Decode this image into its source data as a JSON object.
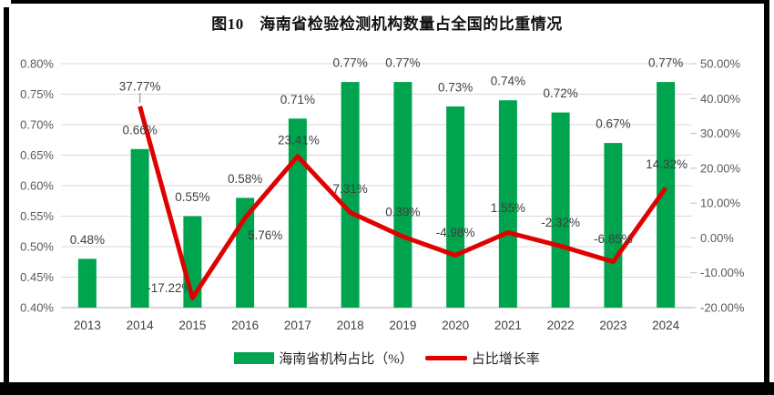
{
  "title": "图10　海南省检验检测机构数量占全国的比重情况",
  "colors": {
    "bar": "#00A44F",
    "line": "#E10000",
    "grid": "#D9D9D9",
    "axis_line": "#BFBFBF",
    "tick_text": "#595959",
    "category_text": "#404040",
    "label_text": "#3F3F3F",
    "leader_line": "#A6A6A6"
  },
  "chart_data": {
    "type": "bar+line",
    "title": "图10　海南省检验检测机构数量占全国的比重情况",
    "categories": [
      "2013",
      "2014",
      "2015",
      "2016",
      "2017",
      "2018",
      "2019",
      "2020",
      "2021",
      "2022",
      "2023",
      "2024"
    ],
    "series": [
      {
        "name": "海南省机构占比（%）",
        "type": "bar",
        "axis": "left",
        "values": [
          0.48,
          0.66,
          0.55,
          0.58,
          0.71,
          0.77,
          0.77,
          0.73,
          0.74,
          0.72,
          0.67,
          0.77
        ],
        "labels": [
          "0.48%",
          "0.66%",
          "0.55%",
          "0.58%",
          "0.71%",
          "0.77%",
          "0.77%",
          "0.73%",
          "0.74%",
          "0.72%",
          "0.67%",
          "0.77%"
        ]
      },
      {
        "name": "占比增长率",
        "type": "line",
        "axis": "right",
        "values": [
          null,
          37.77,
          -17.22,
          5.76,
          23.41,
          7.31,
          0.39,
          -4.98,
          1.55,
          -2.32,
          -6.85,
          14.32
        ],
        "labels": [
          null,
          "37.77%",
          "-17.22%",
          "5.76%",
          "23.41%",
          "7.31%",
          "0.39%",
          "-4.98%",
          "1.55%",
          "-2.32%",
          "-6.85%",
          "14.32%"
        ],
        "label_offsets": [
          null,
          [
            0,
            -22
          ],
          [
            -25,
            -11
          ],
          [
            22,
            19
          ],
          [
            1,
            -18
          ],
          [
            0,
            -26
          ],
          [
            0,
            -27
          ],
          [
            0,
            -25
          ],
          [
            0,
            -27
          ],
          [
            0,
            -26
          ],
          [
            0,
            -25
          ],
          [
            1,
            -26
          ]
        ]
      }
    ],
    "left_axis": {
      "ticks": [
        "0.80%",
        "0.75%",
        "0.70%",
        "0.65%",
        "0.60%",
        "0.55%",
        "0.50%",
        "0.45%",
        "0.40%"
      ],
      "min": 0.4,
      "max": 0.8
    },
    "right_axis": {
      "ticks": [
        "50.00%",
        "40.00%",
        "30.00%",
        "20.00%",
        "10.00%",
        "0.00%",
        "-10.00%",
        "-20.00%"
      ],
      "min": -20,
      "max": 50
    },
    "grid": true,
    "legend_position": "bottom"
  }
}
